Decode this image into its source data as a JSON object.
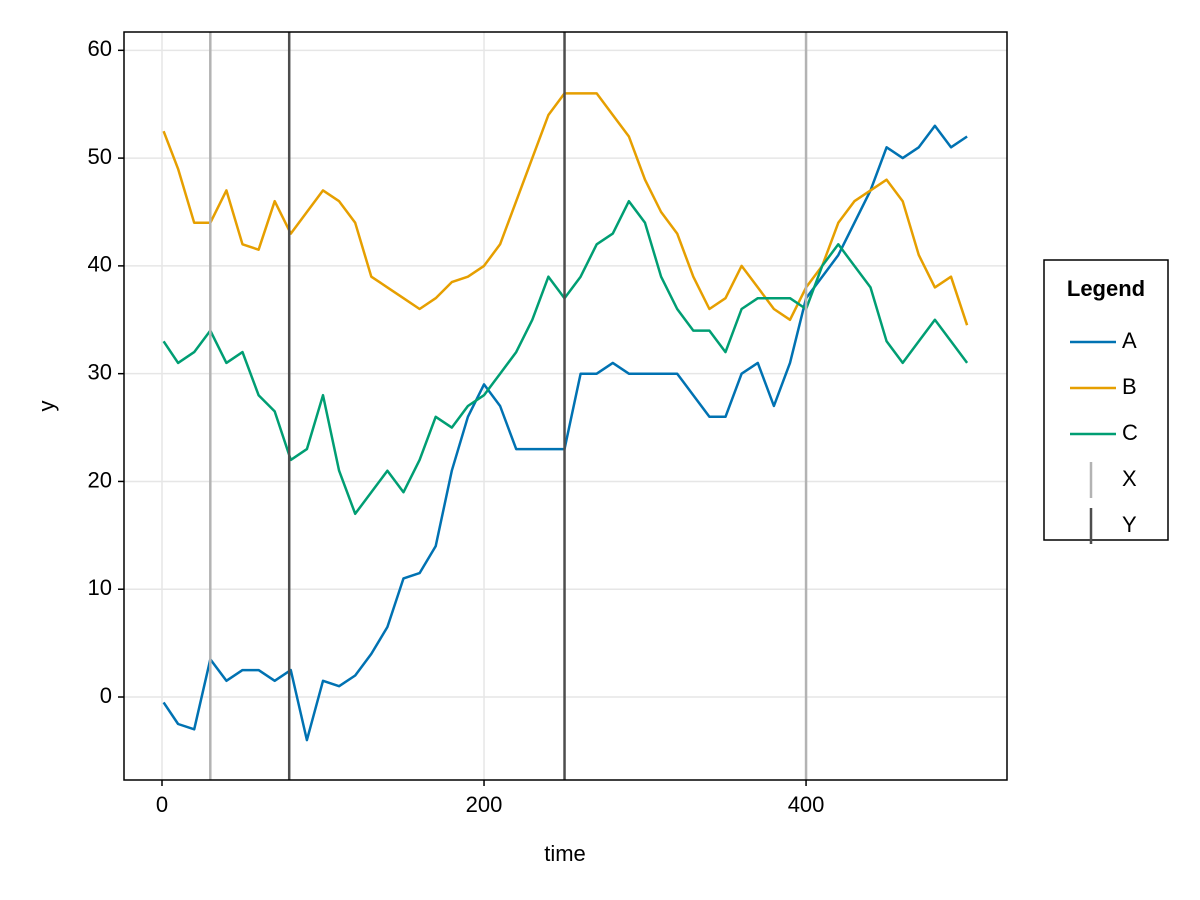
{
  "chart_data": {
    "type": "line",
    "xlabel": "time",
    "ylabel": "y",
    "x": [
      1,
      10,
      20,
      30,
      40,
      50,
      60,
      70,
      80,
      90,
      100,
      110,
      120,
      130,
      140,
      150,
      160,
      170,
      180,
      190,
      200,
      210,
      220,
      230,
      240,
      250,
      260,
      270,
      280,
      290,
      300,
      310,
      320,
      330,
      340,
      350,
      360,
      370,
      380,
      390,
      400,
      410,
      420,
      430,
      440,
      450,
      460,
      470,
      480,
      490,
      500
    ],
    "series": [
      {
        "name": "A",
        "color": "#0072b2",
        "values": [
          -0.5,
          -2.5,
          -3,
          3.5,
          1.5,
          2.5,
          2.5,
          1.5,
          2.5,
          -4,
          1.5,
          1,
          2,
          4,
          6.5,
          11,
          11.5,
          14,
          21,
          26,
          29,
          27,
          23,
          23,
          23,
          23,
          30,
          30,
          31,
          30,
          30,
          30,
          30,
          28,
          26,
          26,
          30,
          31,
          27,
          31,
          37,
          39,
          41,
          44,
          47,
          51,
          50,
          51,
          53,
          51,
          52
        ]
      },
      {
        "name": "B",
        "color": "#e69f00",
        "values": [
          52.5,
          49,
          44,
          44,
          47,
          42,
          41.5,
          46,
          43,
          45,
          47,
          46,
          44,
          39,
          38,
          37,
          36,
          37,
          38.5,
          39,
          40,
          42,
          46,
          50,
          54,
          56,
          56,
          56,
          54,
          52,
          48,
          45,
          43,
          39,
          36,
          37,
          40,
          38,
          36,
          35,
          38,
          40,
          44,
          46,
          47,
          48,
          46,
          41,
          38,
          39,
          34.5
        ]
      },
      {
        "name": "C",
        "color": "#009e73",
        "values": [
          33,
          31,
          32,
          34,
          31,
          32,
          28,
          26.5,
          22,
          23,
          28,
          21,
          17,
          19,
          21,
          19,
          22,
          26,
          25,
          27,
          28,
          30,
          32,
          35,
          39,
          37,
          39,
          42,
          43,
          46,
          44,
          39,
          36,
          34,
          34,
          32,
          36,
          37,
          37,
          37,
          36,
          40,
          42,
          40,
          38,
          33,
          31,
          33,
          35,
          33,
          31
        ]
      }
    ],
    "vlines": [
      {
        "name": "X",
        "color": "#b3b3b3",
        "x": [
          30,
          400
        ]
      },
      {
        "name": "Y",
        "color": "#4d4d4d",
        "x": [
          79,
          250
        ]
      }
    ],
    "legend_title": "Legend",
    "xlim": [
      -23.6,
      524.8
    ],
    "ylim": [
      -7.7,
      61.7
    ],
    "xticks": [
      0,
      200,
      400
    ],
    "yticks": [
      0,
      10,
      20,
      30,
      40,
      50,
      60
    ],
    "grid": true,
    "legend": "right"
  }
}
